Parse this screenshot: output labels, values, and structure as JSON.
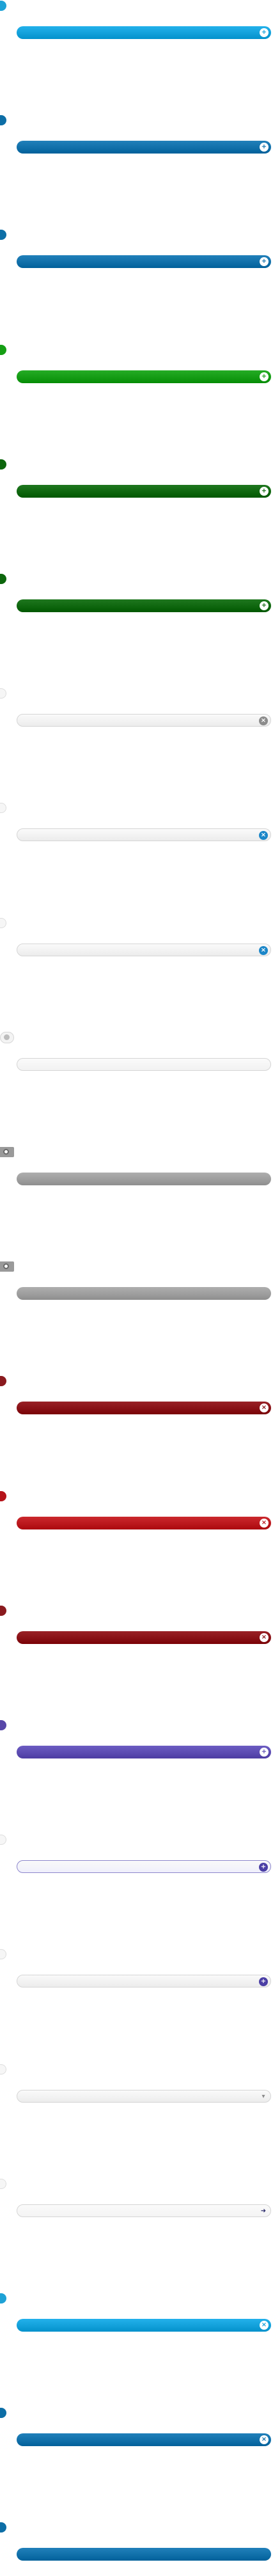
{
  "rows": [
    {
      "tab": "#1ea2d6",
      "bar": "#119fd9",
      "icon": "plus"
    },
    {
      "tab": "#0d6ea6",
      "bar": "#0f6ea8",
      "icon": "plus"
    },
    {
      "tab": "#0d6ea6",
      "bar": "#0f6ea8",
      "icon": "plus"
    },
    {
      "tab": "#159e14",
      "bar": "#139a13",
      "icon": "plus"
    },
    {
      "tab": "#0c660c",
      "bar": "#0d650d",
      "icon": "plus"
    },
    {
      "tab": "#0c660c",
      "bar": "#0d650d",
      "icon": "plus"
    },
    {
      "tab": "#eeeeee",
      "bar": "#ececec",
      "icon": "close-gray"
    },
    {
      "tab": "#eeeeee",
      "bar": "#ececec",
      "icon": "close-blue"
    },
    {
      "tab": "#eeeeee",
      "bar": "#ececec",
      "icon": "close-blue"
    },
    {
      "tab": "#cfcfcf",
      "bar": "#f2f2f2",
      "icon": "none"
    },
    {
      "tab": "#9a9a9a",
      "bar": "#9c9c9c",
      "icon": "none"
    },
    {
      "tab": "#9a9a9a",
      "bar": "#9c9c9c",
      "icon": "none"
    },
    {
      "tab": "#8a1a1e",
      "bar": "#870f14",
      "icon": "close"
    },
    {
      "tab": "#b51319",
      "bar": "#b9161b",
      "icon": "close"
    },
    {
      "tab": "#8a1a1e",
      "bar": "#870f14",
      "icon": "close"
    },
    {
      "tab": "#5747a8",
      "bar": "#5a4ab0",
      "icon": "plus"
    },
    {
      "tab": "#eeeeee",
      "bar": "#efeffb",
      "icon": "plus-purple"
    },
    {
      "tab": "#eeeeee",
      "bar": "#ececec",
      "icon": "plus-purple"
    },
    {
      "tab": "#eeeeee",
      "bar": "#ececec",
      "icon": "chevron"
    },
    {
      "tab": "#eeeeee",
      "bar": "#f4f4f4",
      "icon": "arrow"
    },
    {
      "tab": "#1ea2d6",
      "bar": "#119fd9",
      "icon": "close"
    },
    {
      "tab": "#0d6ea6",
      "bar": "#0f6ea8",
      "icon": "close"
    },
    {
      "tab": "#0d6ea6",
      "bar": "#0f6ea8",
      "icon": "none"
    }
  ]
}
